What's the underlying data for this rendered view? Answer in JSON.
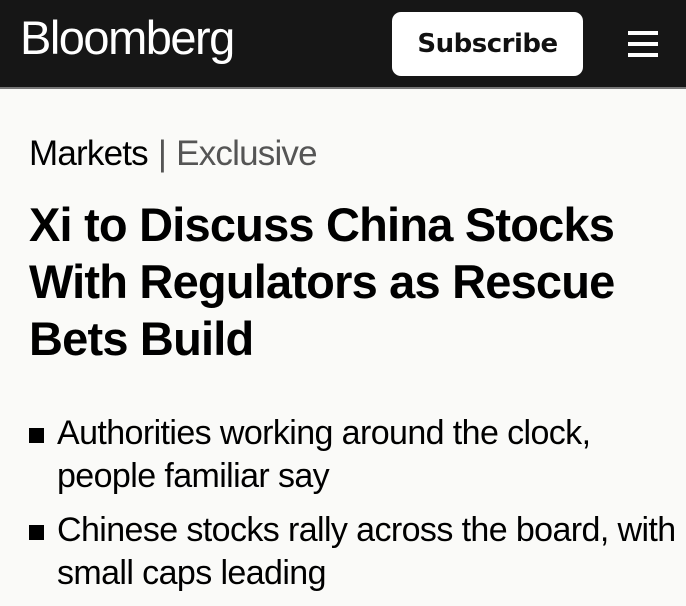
{
  "header": {
    "logo": "Bloomberg",
    "subscribe_label": "Subscribe",
    "menu_icon": "hamburger-icon"
  },
  "article": {
    "category": "Markets",
    "tag": "Exclusive",
    "separator": "|",
    "headline": "Xi to Discuss China Stocks With Regulators as Rescue Bets Build",
    "bullets": [
      "Authorities working around the clock, people familiar say",
      "Chinese stocks rally across the board, with small caps leading"
    ]
  }
}
